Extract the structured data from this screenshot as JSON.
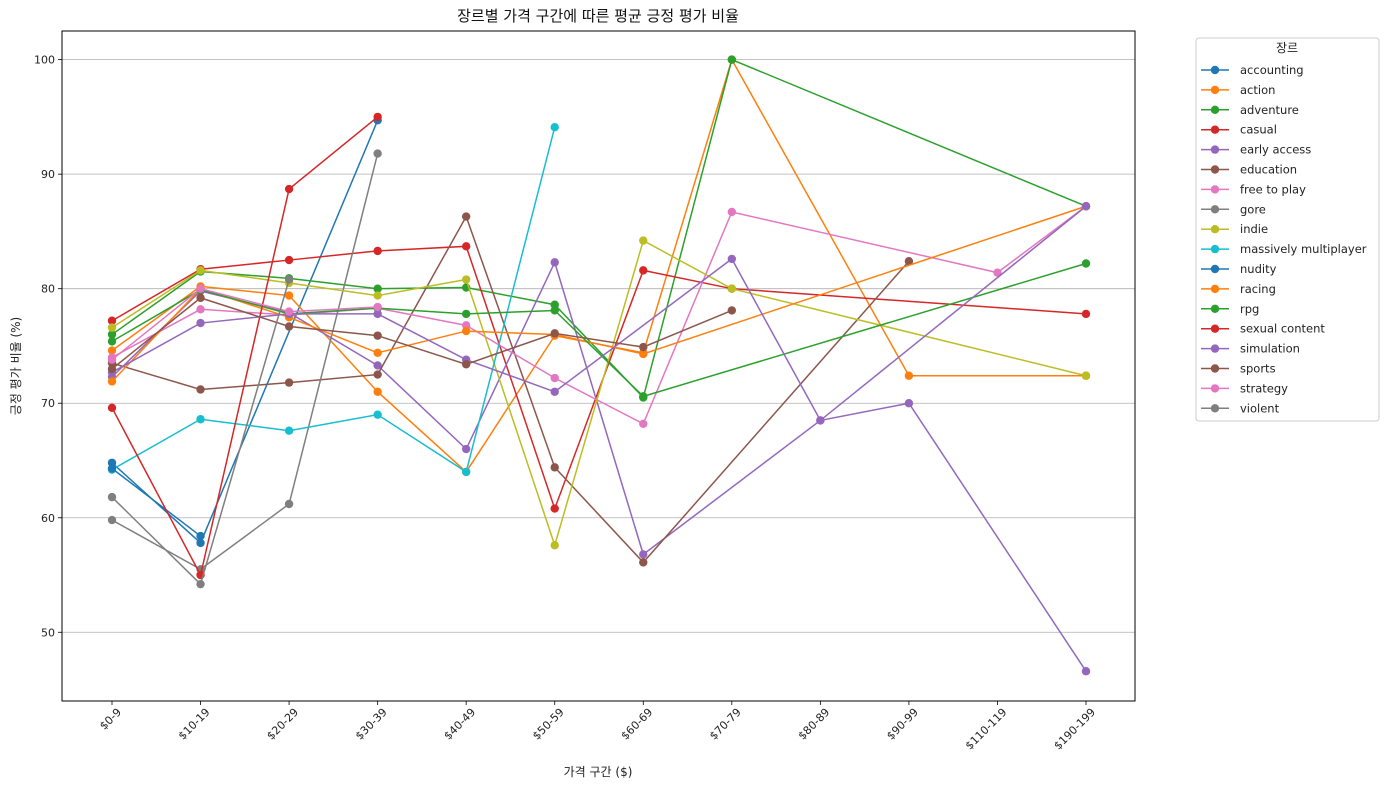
{
  "chart_data": {
    "type": "line",
    "title": "장르별 가격 구간에 따른 평균 긍정 평가 비율",
    "xlabel": "가격 구간 ($)",
    "ylabel": "긍정 평가 비율 (%)",
    "ylim": [
      44,
      102.5
    ],
    "yticks": [
      50,
      60,
      70,
      80,
      90,
      100
    ],
    "grid": "y-major",
    "legend_title": "장르",
    "legend_position": "outside-right-top",
    "categories": [
      "$0-9",
      "$10-19",
      "$20-29",
      "$30-39",
      "$40-49",
      "$50-59",
      "$60-69",
      "$70-79",
      "$80-89",
      "$90-99",
      "$110-119",
      "$190-199"
    ],
    "series": [
      {
        "name": "accounting",
        "color": "#1f77b4",
        "values": [
          64.8,
          57.8,
          null,
          94.7,
          null,
          null,
          null,
          null,
          null,
          null,
          null,
          null
        ]
      },
      {
        "name": "action",
        "color": "#ff7f0e",
        "values": [
          74.6,
          80.2,
          79.4,
          71.0,
          64.0,
          75.9,
          74.4,
          100.0,
          null,
          72.4,
          null,
          72.4
        ]
      },
      {
        "name": "adventure",
        "color": "#2ca02c",
        "values": [
          76.0,
          81.5,
          80.9,
          80.0,
          80.1,
          78.6,
          70.5,
          100.0,
          null,
          null,
          null,
          87.2
        ]
      },
      {
        "name": "casual",
        "color": "#d62728",
        "values": [
          77.2,
          81.7,
          82.5,
          83.3,
          83.7,
          60.8,
          81.6,
          80.0,
          null,
          null,
          null,
          77.8
        ]
      },
      {
        "name": "early access",
        "color": "#9467bd",
        "values": [
          72.3,
          79.8,
          77.9,
          73.3,
          66.0,
          82.3,
          56.8,
          null,
          68.5,
          70.0,
          null,
          46.6
        ]
      },
      {
        "name": "education",
        "color": "#8c564b",
        "values": [
          73.5,
          71.2,
          71.8,
          72.5,
          86.3,
          64.4,
          56.1,
          null,
          null,
          82.4,
          null,
          null
        ]
      },
      {
        "name": "free to play",
        "color": "#e377c2",
        "values": [
          74.0,
          78.2,
          77.7,
          78.3,
          76.8,
          72.2,
          68.2,
          86.7,
          null,
          null,
          81.4,
          87.2
        ]
      },
      {
        "name": "gore",
        "color": "#7f7f7f",
        "values": [
          59.8,
          55.5,
          61.2,
          91.8,
          null,
          null,
          null,
          null,
          null,
          null,
          null,
          null
        ]
      },
      {
        "name": "indie",
        "color": "#bcbd22",
        "values": [
          76.6,
          81.6,
          80.5,
          79.4,
          80.8,
          57.6,
          84.2,
          80.0,
          null,
          null,
          null,
          72.4
        ]
      },
      {
        "name": "massively multiplayer",
        "color": "#17becf",
        "values": [
          64.2,
          68.6,
          67.6,
          69.0,
          64.0,
          94.1,
          null,
          null,
          null,
          null,
          null,
          null
        ]
      },
      {
        "name": "nudity",
        "color": "#1f77b4",
        "values": [
          64.3,
          58.4,
          null,
          null,
          null,
          null,
          null,
          null,
          null,
          null,
          null,
          null
        ]
      },
      {
        "name": "racing",
        "color": "#ff7f0e",
        "values": [
          71.9,
          80.0,
          77.5,
          74.4,
          76.3,
          76.0,
          74.3,
          null,
          null,
          null,
          null,
          87.2
        ]
      },
      {
        "name": "rpg",
        "color": "#2ca02c",
        "values": [
          75.4,
          79.9,
          77.8,
          78.3,
          77.8,
          78.1,
          70.6,
          null,
          null,
          null,
          null,
          82.2
        ]
      },
      {
        "name": "sexual content",
        "color": "#d62728",
        "values": [
          69.6,
          55.0,
          88.7,
          95.0,
          null,
          null,
          null,
          null,
          null,
          null,
          null,
          null
        ]
      },
      {
        "name": "simulation",
        "color": "#9467bd",
        "values": [
          72.7,
          77.0,
          77.8,
          77.8,
          73.8,
          71.0,
          null,
          82.6,
          68.5,
          null,
          null,
          87.2
        ]
      },
      {
        "name": "sports",
        "color": "#8c564b",
        "values": [
          73.0,
          79.2,
          76.7,
          75.9,
          73.4,
          76.1,
          74.9,
          78.1,
          null,
          null,
          null,
          null
        ]
      },
      {
        "name": "strategy",
        "color": "#e377c2",
        "values": [
          73.8,
          80.0,
          78.0,
          78.4,
          null,
          null,
          null,
          null,
          null,
          null,
          null,
          null
        ]
      },
      {
        "name": "violent",
        "color": "#7f7f7f",
        "values": [
          61.8,
          54.2,
          80.8,
          null,
          null,
          null,
          null,
          null,
          null,
          null,
          null,
          null
        ]
      }
    ]
  }
}
